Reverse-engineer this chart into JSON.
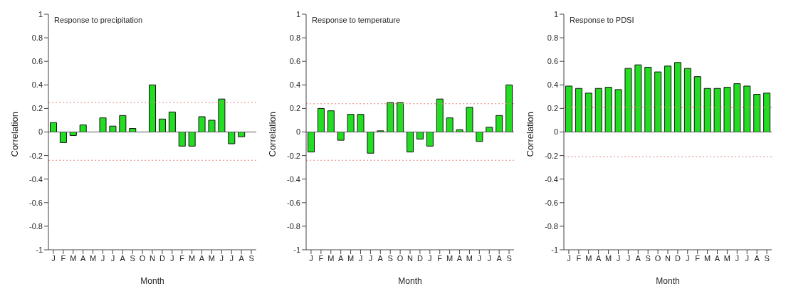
{
  "chart_data": [
    {
      "type": "bar",
      "title": "Response to precipitation",
      "xlabel": "Month",
      "ylabel": "Correlation",
      "categories": [
        "J",
        "F",
        "M",
        "A",
        "M",
        "J",
        "J",
        "A",
        "S",
        "O",
        "N",
        "D",
        "J",
        "F",
        "M",
        "A",
        "M",
        "J",
        "J",
        "A",
        "S"
      ],
      "color": "#22dd22",
      "values": [
        0.08,
        -0.09,
        -0.03,
        0.06,
        0,
        0.12,
        0.05,
        0.14,
        0.03,
        0,
        0.4,
        0.11,
        0.17,
        -0.12,
        -0.12,
        0.13,
        0.1,
        0.28,
        -0.1,
        -0.04,
        0
      ],
      "ylim": [
        -1,
        1
      ],
      "yticks": [
        -1,
        -0.8,
        -0.6,
        -0.4,
        -0.2,
        0,
        0.2,
        0.4,
        0.6,
        0.8,
        1
      ],
      "grid": false,
      "legend": false,
      "ref_lines": [
        {
          "axis": "y",
          "value": 0.25,
          "color": "#e88080",
          "line_style": "dotted"
        },
        {
          "axis": "y",
          "value": -0.24,
          "color": "#e88080",
          "line_style": "dotted"
        },
        {
          "axis": "y",
          "value": 0,
          "color": "#555555",
          "line_style": "solid"
        }
      ]
    },
    {
      "type": "bar",
      "title": "Response to temperature",
      "xlabel": "Month",
      "ylabel": "Correlation",
      "categories": [
        "J",
        "F",
        "M",
        "A",
        "M",
        "J",
        "J",
        "A",
        "S",
        "O",
        "N",
        "D",
        "J",
        "F",
        "M",
        "A",
        "M",
        "J",
        "J",
        "A",
        "S"
      ],
      "color": "#22dd22",
      "values": [
        -0.17,
        0.2,
        0.18,
        -0.07,
        0.15,
        0.15,
        -0.18,
        0.01,
        0.25,
        0.25,
        -0.17,
        -0.06,
        -0.12,
        0.28,
        0.12,
        0.02,
        0.21,
        -0.08,
        0.04,
        0.14,
        0.4
      ],
      "ylim": [
        -1,
        1
      ],
      "yticks": [
        -1,
        -0.8,
        -0.6,
        -0.4,
        -0.2,
        0,
        0.2,
        0.4,
        0.6,
        0.8,
        1
      ],
      "grid": false,
      "legend": false,
      "ref_lines": [
        {
          "axis": "y",
          "value": 0.24,
          "color": "#e88080",
          "line_style": "dotted"
        },
        {
          "axis": "y",
          "value": -0.24,
          "color": "#e88080",
          "line_style": "dotted"
        },
        {
          "axis": "y",
          "value": 0,
          "color": "#555555",
          "line_style": "solid"
        }
      ]
    },
    {
      "type": "bar",
      "title": "Response to PDSI",
      "xlabel": "Month",
      "ylabel": "Correlation",
      "categories": [
        "J",
        "F",
        "M",
        "A",
        "M",
        "J",
        "J",
        "A",
        "S",
        "O",
        "N",
        "D",
        "J",
        "F",
        "M",
        "A",
        "M",
        "J",
        "J",
        "A",
        "S"
      ],
      "color": "#22dd22",
      "values": [
        0.39,
        0.37,
        0.33,
        0.37,
        0.38,
        0.36,
        0.54,
        0.57,
        0.55,
        0.51,
        0.56,
        0.59,
        0.54,
        0.47,
        0.37,
        0.37,
        0.38,
        0.41,
        0.39,
        0.32,
        0.33
      ],
      "ylim": [
        -1,
        1
      ],
      "yticks": [
        -1,
        -0.8,
        -0.6,
        -0.4,
        -0.2,
        0,
        0.2,
        0.4,
        0.6,
        0.8,
        1
      ],
      "grid": false,
      "legend": false,
      "ref_lines": [
        {
          "axis": "y",
          "value": 0.21,
          "color": "#e88080",
          "line_style": "dotted"
        },
        {
          "axis": "y",
          "value": -0.21,
          "color": "#e88080",
          "line_style": "dotted"
        },
        {
          "axis": "y",
          "value": 0,
          "color": "#555555",
          "line_style": "solid"
        }
      ]
    }
  ]
}
